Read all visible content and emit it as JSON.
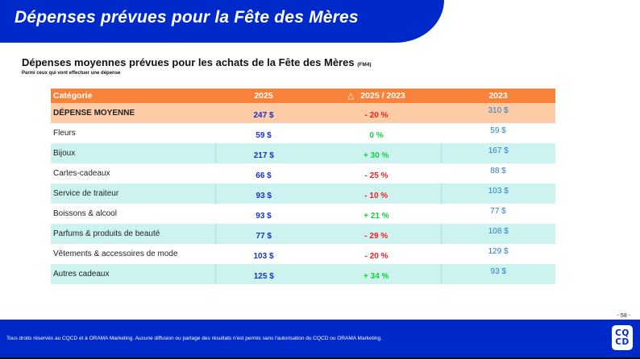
{
  "header": {
    "title": "Dépenses prévues pour la Fête des Mères"
  },
  "section": {
    "title": "Dépenses moyennes prévues pour les achats de la Fête des Mères",
    "code": "(FM4)",
    "subtitle": "Parmi ceux qui vont effectuer une dépense"
  },
  "table": {
    "headers": {
      "category": "Catégorie",
      "y2025": "2025",
      "delta_icon": "△",
      "delta": "2025 / 2023",
      "y2023": "2023"
    },
    "rows": [
      {
        "category": "DÉPENSE MOYENNE",
        "v2025": "247 $",
        "delta": "- 20 %",
        "trend": "neg",
        "v2023": "310 $",
        "style": "total"
      },
      {
        "category": "Fleurs",
        "v2025": "59 $",
        "delta": "0 %",
        "trend": "pos",
        "v2023": "59 $",
        "style": "white"
      },
      {
        "category": "Bijoux",
        "v2025": "217 $",
        "delta": "+ 30 %",
        "trend": "pos",
        "v2023": "167 $",
        "style": "teal"
      },
      {
        "category": "Cartes-cadeaux",
        "v2025": "66 $",
        "delta": "- 25 %",
        "trend": "neg",
        "v2023": "88 $",
        "style": "white"
      },
      {
        "category": "Service de traiteur",
        "v2025": "93 $",
        "delta": "- 10 %",
        "trend": "neg",
        "v2023": "103 $",
        "style": "teal"
      },
      {
        "category": "Boissons & alcool",
        "v2025": "93 $",
        "delta": "+ 21 %",
        "trend": "pos",
        "v2023": "77 $",
        "style": "white"
      },
      {
        "category": "Parfums & produits de beauté",
        "v2025": "77 $",
        "delta": "- 29 %",
        "trend": "neg",
        "v2023": "108 $",
        "style": "teal"
      },
      {
        "category": "Vêtements & accessoires de mode",
        "v2025": "103 $",
        "delta": "- 20 %",
        "trend": "neg",
        "v2023": "129 $",
        "style": "white"
      },
      {
        "category": "Autres cadeaux",
        "v2025": "125 $",
        "delta": "+ 34 %",
        "trend": "pos",
        "v2023": "93 $",
        "style": "teal"
      }
    ]
  },
  "colors": {
    "brand_blue": "#0029c9",
    "header_orange": "#f7833b",
    "total_row": "#fdcba6",
    "teal_row": "#cdf3f1",
    "negative": "#ff1a1a",
    "positive": "#13d13a"
  },
  "footer": {
    "page_number": "- 58 -",
    "copyright": "Tous droits réservés au CQCD et à ORAMA Marketing. Aucune diffusion ou partage des résultats n'est permis sans l'autorisation du CQCD ou ORAMA Marketing.",
    "logo_line1": "CQ",
    "logo_line2": "CD"
  }
}
